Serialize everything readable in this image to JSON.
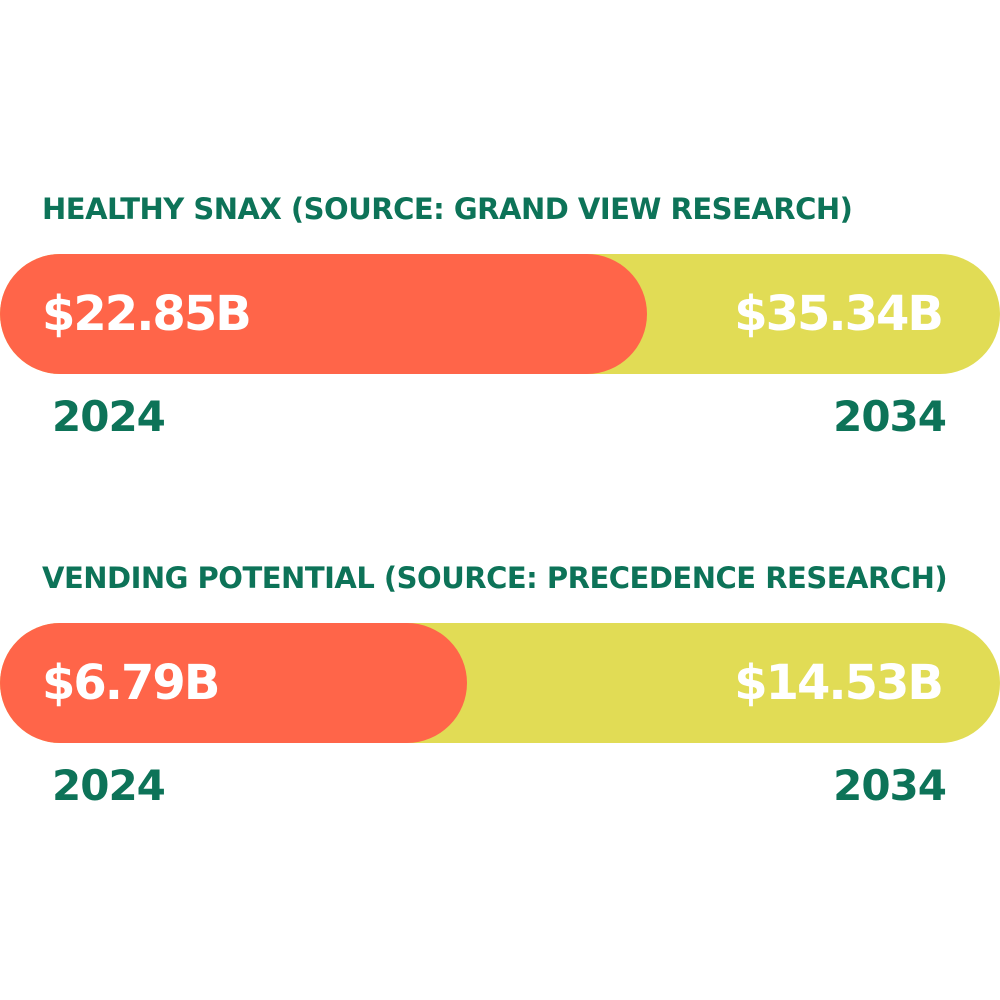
{
  "chart_data": [
    {
      "type": "bar",
      "title": "HEALTHY SNAX (SOURCE: GRAND VIEW RESEARCH)",
      "categories": [
        "2024",
        "2034"
      ],
      "values": [
        22.85,
        35.34
      ],
      "value_labels": [
        "$22.85B",
        "$35.34B"
      ],
      "unit": "B",
      "colors": {
        "2024": "#ff6549",
        "2034": "#e1dc55",
        "text": "#0d7358"
      }
    },
    {
      "type": "bar",
      "title": "VENDING POTENTIAL (SOURCE: PRECEDENCE RESEARCH)",
      "categories": [
        "2024",
        "2034"
      ],
      "values": [
        6.79,
        14.53
      ],
      "value_labels": [
        "$6.79B",
        "$14.53B"
      ],
      "unit": "B",
      "colors": {
        "2024": "#ff6549",
        "2034": "#e1dc55",
        "text": "#0d7358"
      }
    }
  ]
}
